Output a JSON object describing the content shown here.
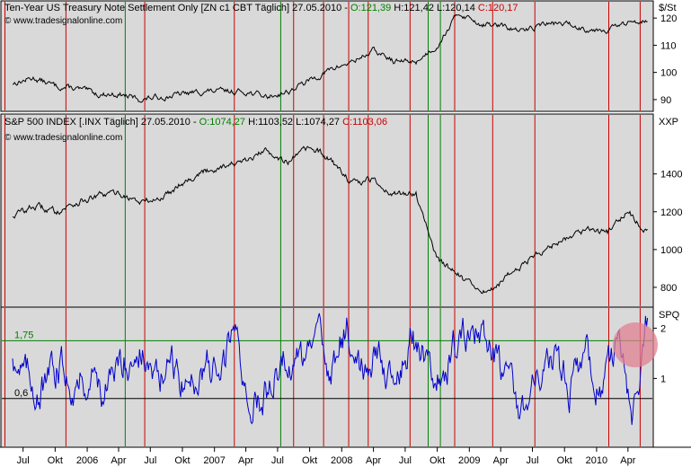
{
  "chart_data": [
    {
      "type": "line",
      "name": "ten-year-note",
      "header": {
        "title": "Ten-Year US Treasury Note Settlement Only [ZN c1 CBT  Täglich] 27.05.2010 - ",
        "open": "O:121,39",
        "high": " H:121,42",
        "low": " L:120,14",
        "close": " C:120,17"
      },
      "source": "© www.tradesignalonline.com",
      "unit_label": "$/St",
      "yticks": [
        90,
        100,
        110,
        120
      ],
      "ylim": [
        86,
        126
      ],
      "x": [
        "2005-06-01",
        "2005-08-01",
        "2005-10-01",
        "2005-12-01",
        "2006-02-01",
        "2006-04-01",
        "2006-06-01",
        "2006-08-01",
        "2006-10-01",
        "2006-12-01",
        "2007-02-01",
        "2007-04-01",
        "2007-06-01",
        "2007-08-01",
        "2007-10-01",
        "2007-12-01",
        "2008-02-01",
        "2008-04-01",
        "2008-06-01",
        "2008-08-01",
        "2008-10-01",
        "2008-12-01",
        "2009-02-01",
        "2009-04-01",
        "2009-06-01",
        "2009-08-01",
        "2009-10-01",
        "2009-12-01",
        "2010-02-01",
        "2010-04-01",
        "2010-05-27"
      ],
      "values": [
        96,
        98,
        95,
        94,
        92,
        92,
        90,
        91,
        92,
        93,
        93,
        93,
        91,
        93,
        97,
        101,
        104,
        108,
        104,
        104,
        110,
        122,
        118,
        117,
        115,
        118,
        118,
        116,
        116,
        118,
        120
      ]
    },
    {
      "type": "line",
      "name": "sp500",
      "header": {
        "title": "S&P 500 INDEX [.INX  Täglich] 27.05.2010 - ",
        "open": "O:1074,27",
        "high": " H:1103,52",
        "low": " L:1074,27",
        "close": " C:1103,06"
      },
      "source": "© www.tradesignalonline.com",
      "unit_label": "XXP",
      "yticks": [
        800,
        1000,
        1200,
        1400
      ],
      "ylim": [
        700,
        1560
      ],
      "x": [
        "2005-06-01",
        "2005-08-01",
        "2005-10-01",
        "2005-12-01",
        "2006-02-01",
        "2006-04-01",
        "2006-06-01",
        "2006-08-01",
        "2006-10-01",
        "2006-12-01",
        "2007-02-01",
        "2007-04-01",
        "2007-06-01",
        "2007-08-01",
        "2007-10-01",
        "2007-12-01",
        "2008-02-01",
        "2008-04-01",
        "2008-06-01",
        "2008-08-01",
        "2008-10-01",
        "2008-12-01",
        "2009-02-01",
        "2009-04-01",
        "2009-06-01",
        "2009-08-01",
        "2009-10-01",
        "2009-12-01",
        "2010-02-01",
        "2010-04-01",
        "2010-05-27"
      ],
      "values": [
        1180,
        1230,
        1200,
        1250,
        1280,
        1300,
        1250,
        1270,
        1360,
        1410,
        1450,
        1460,
        1530,
        1460,
        1540,
        1470,
        1350,
        1370,
        1290,
        1300,
        950,
        870,
        760,
        830,
        920,
        1000,
        1060,
        1110,
        1090,
        1200,
        1090
      ]
    },
    {
      "type": "line",
      "name": "spq",
      "unit_label": "SPQ",
      "yticks": [
        1,
        2
      ],
      "ylim": [
        -0.35,
        2.4
      ],
      "levels": [
        {
          "value": 1.75,
          "label": "1,75",
          "color": "#008000"
        },
        {
          "value": 0.6,
          "label": "0,6",
          "color": "#000000"
        }
      ],
      "x": [
        "2005-06-01",
        "2005-07-15",
        "2005-09-01",
        "2005-10-15",
        "2005-12-01",
        "2006-01-15",
        "2006-03-01",
        "2006-04-15",
        "2006-06-01",
        "2006-07-15",
        "2006-09-01",
        "2006-10-15",
        "2006-12-01",
        "2007-01-15",
        "2007-03-01",
        "2007-04-15",
        "2007-06-01",
        "2007-07-15",
        "2007-09-01",
        "2007-10-15",
        "2007-12-01",
        "2008-01-15",
        "2008-03-01",
        "2008-04-15",
        "2008-06-01",
        "2008-07-15",
        "2008-09-01",
        "2008-10-15",
        "2008-12-01",
        "2009-01-15",
        "2009-03-01",
        "2009-04-15",
        "2009-06-01",
        "2009-07-15",
        "2009-09-01",
        "2009-10-15",
        "2009-12-01",
        "2010-01-15",
        "2010-03-01",
        "2010-04-15",
        "2010-05-27"
      ],
      "values": [
        1.5,
        1.0,
        0.8,
        1.3,
        0.9,
        1.1,
        0.7,
        1.4,
        1.6,
        0.9,
        1.2,
        0.8,
        1.3,
        1.0,
        2.0,
        0.4,
        0.8,
        1.5,
        1.2,
        1.7,
        1.3,
        2.0,
        1.1,
        1.5,
        1.0,
        1.8,
        1.4,
        1.2,
        1.7,
        1.9,
        1.5,
        0.9,
        0.5,
        1.0,
        1.3,
        0.8,
        1.4,
        0.6,
        1.8,
        0.2,
        2.1
      ]
    }
  ],
  "markers": {
    "green_dates": [
      "2006-04-20",
      "2007-07-10",
      "2008-09-05",
      "2008-10-10"
    ],
    "red_dates": [
      "2005-05-10",
      "2005-11-01",
      "2006-06-15",
      "2007-02-27",
      "2007-08-16",
      "2007-11-10",
      "2008-01-21",
      "2008-03-17",
      "2008-07-15",
      "2008-11-20",
      "2009-03-09",
      "2009-07-08",
      "2010-02-05",
      "2010-05-06"
    ]
  },
  "x_axis": {
    "labels": [
      {
        "date": "2005-07-01",
        "text": "Jul"
      },
      {
        "date": "2005-10-01",
        "text": "Okt"
      },
      {
        "date": "2006-01-01",
        "text": "2006"
      },
      {
        "date": "2006-04-01",
        "text": "Apr"
      },
      {
        "date": "2006-07-01",
        "text": "Jul"
      },
      {
        "date": "2006-10-01",
        "text": "Okt"
      },
      {
        "date": "2007-01-01",
        "text": "2007"
      },
      {
        "date": "2007-04-01",
        "text": "Apr"
      },
      {
        "date": "2007-07-01",
        "text": "Jul"
      },
      {
        "date": "2007-10-01",
        "text": "Okt"
      },
      {
        "date": "2008-01-01",
        "text": "2008"
      },
      {
        "date": "2008-04-01",
        "text": "Apr"
      },
      {
        "date": "2008-07-01",
        "text": "Jul"
      },
      {
        "date": "2008-10-01",
        "text": "Okt"
      },
      {
        "date": "2009-01-01",
        "text": "2009"
      },
      {
        "date": "2009-04-01",
        "text": "Apr"
      },
      {
        "date": "2009-07-01",
        "text": "Jul"
      },
      {
        "date": "2009-10-01",
        "text": "Okt"
      },
      {
        "date": "2010-01-01",
        "text": "2010"
      },
      {
        "date": "2010-04-01",
        "text": "Apr"
      }
    ]
  },
  "colors": {
    "plot_bg": "#d9d9d9",
    "price_line": "#000000",
    "indicator_line": "#0000cc",
    "green_marker": "#008000",
    "red_marker": "#cc0000",
    "highlight": "#e08090"
  }
}
